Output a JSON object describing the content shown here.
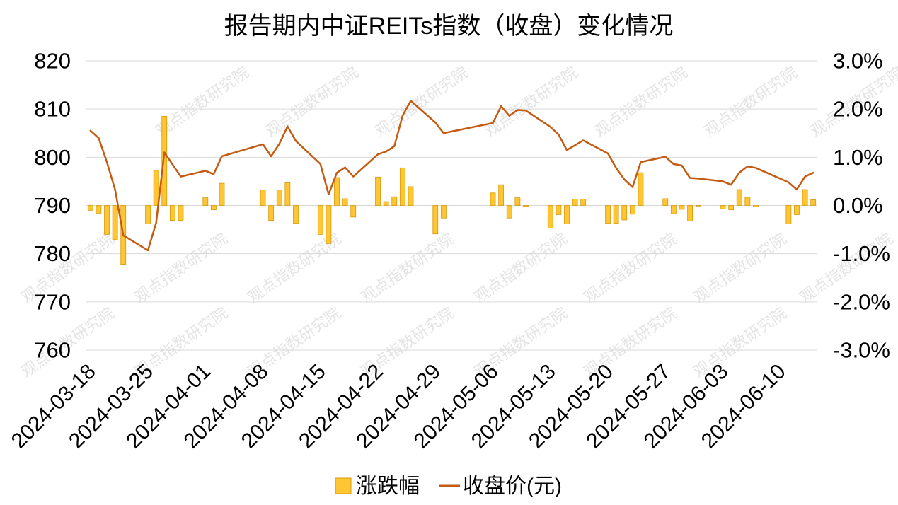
{
  "chart_data": {
    "type": "bar",
    "title": "报告期内中证REITs指数（收盘）变化情况",
    "x": [
      "2024-03-18",
      "2024-03-19",
      "2024-03-20",
      "2024-03-21",
      "2024-03-22",
      "2024-03-25",
      "2024-03-26",
      "2024-03-27",
      "2024-03-28",
      "2024-03-29",
      "2024-04-01",
      "2024-04-02",
      "2024-04-03",
      "2024-04-08",
      "2024-04-09",
      "2024-04-10",
      "2024-04-11",
      "2024-04-12",
      "2024-04-15",
      "2024-04-16",
      "2024-04-17",
      "2024-04-18",
      "2024-04-19",
      "2024-04-22",
      "2024-04-23",
      "2024-04-24",
      "2024-04-25",
      "2024-04-26",
      "2024-04-29",
      "2024-04-30",
      "2024-05-06",
      "2024-05-07",
      "2024-05-08",
      "2024-05-09",
      "2024-05-10",
      "2024-05-13",
      "2024-05-14",
      "2024-05-15",
      "2024-05-16",
      "2024-05-17",
      "2024-05-20",
      "2024-05-21",
      "2024-05-22",
      "2024-05-23",
      "2024-05-24",
      "2024-05-27",
      "2024-05-28",
      "2024-05-29",
      "2024-05-30",
      "2024-05-31",
      "2024-06-03",
      "2024-06-04",
      "2024-06-05",
      "2024-06-06",
      "2024-06-07",
      "2024-06-11",
      "2024-06-12",
      "2024-06-13",
      "2024-06-14"
    ],
    "xticks": [
      "2024-03-18",
      "2024-03-25",
      "2024-04-01",
      "2024-04-08",
      "2024-04-15",
      "2024-04-22",
      "2024-04-29",
      "2024-05-06",
      "2024-05-13",
      "2024-05-20",
      "2024-05-27",
      "2024-06-03",
      "2024-06-10"
    ],
    "ylim": [
      760,
      820
    ],
    "yticks": [
      760,
      770,
      780,
      790,
      800,
      810,
      820
    ],
    "y2lim": [
      -3,
      3
    ],
    "y2ticks": [
      "-3.0%",
      "-2.0%",
      "-1.0%",
      "0.0%",
      "1.0%",
      "2.0%",
      "3.0%"
    ],
    "series": [
      {
        "name": "涨跌幅",
        "type": "bar",
        "axis": "right",
        "values": [
          -0.1,
          -0.16,
          -0.6,
          -0.71,
          -1.22,
          -0.38,
          0.73,
          1.85,
          -0.31,
          -0.31,
          0.16,
          -0.09,
          0.46,
          0.32,
          -0.31,
          0.32,
          0.47,
          -0.37,
          -0.6,
          -0.79,
          0.58,
          0.14,
          -0.24,
          0.59,
          0.08,
          0.18,
          0.78,
          0.39,
          -0.59,
          -0.26,
          0.26,
          0.43,
          -0.26,
          0.16,
          -0.02,
          -0.47,
          -0.19,
          -0.38,
          0.13,
          0.13,
          -0.37,
          -0.37,
          -0.3,
          -0.18,
          0.68,
          0.14,
          -0.17,
          -0.08,
          -0.32,
          -0.01,
          -0.07,
          -0.09,
          0.33,
          0.17,
          -0.03,
          -0.38,
          -0.19,
          0.33,
          0.12
        ]
      },
      {
        "name": "收盘价(元)",
        "type": "line",
        "axis": "left",
        "values": [
          805.5,
          804.0,
          799.0,
          793.3,
          783.8,
          780.7,
          786.4,
          801.0,
          798.5,
          796.0,
          797.2,
          796.5,
          800.2,
          802.7,
          800.2,
          802.8,
          806.4,
          803.4,
          798.6,
          792.3,
          796.8,
          797.9,
          796.0,
          800.6,
          801.2,
          802.3,
          808.6,
          811.7,
          807.2,
          805.0,
          807.1,
          810.6,
          808.6,
          809.8,
          809.7,
          806.3,
          804.7,
          801.5,
          802.5,
          803.5,
          800.8,
          797.8,
          795.4,
          793.8,
          799.0,
          800.1,
          798.6,
          798.3,
          795.7,
          795.6,
          795.0,
          794.3,
          796.8,
          798.1,
          797.8,
          794.8,
          793.3,
          796.0,
          796.8
        ]
      }
    ],
    "grid": true,
    "legend": "bottom",
    "colors": {
      "bar": "#FFC533",
      "bar_edge": "#D69A08",
      "line": "#C55A11",
      "grid": "#D9D9D9"
    }
  },
  "watermark": "观点指数研究院"
}
